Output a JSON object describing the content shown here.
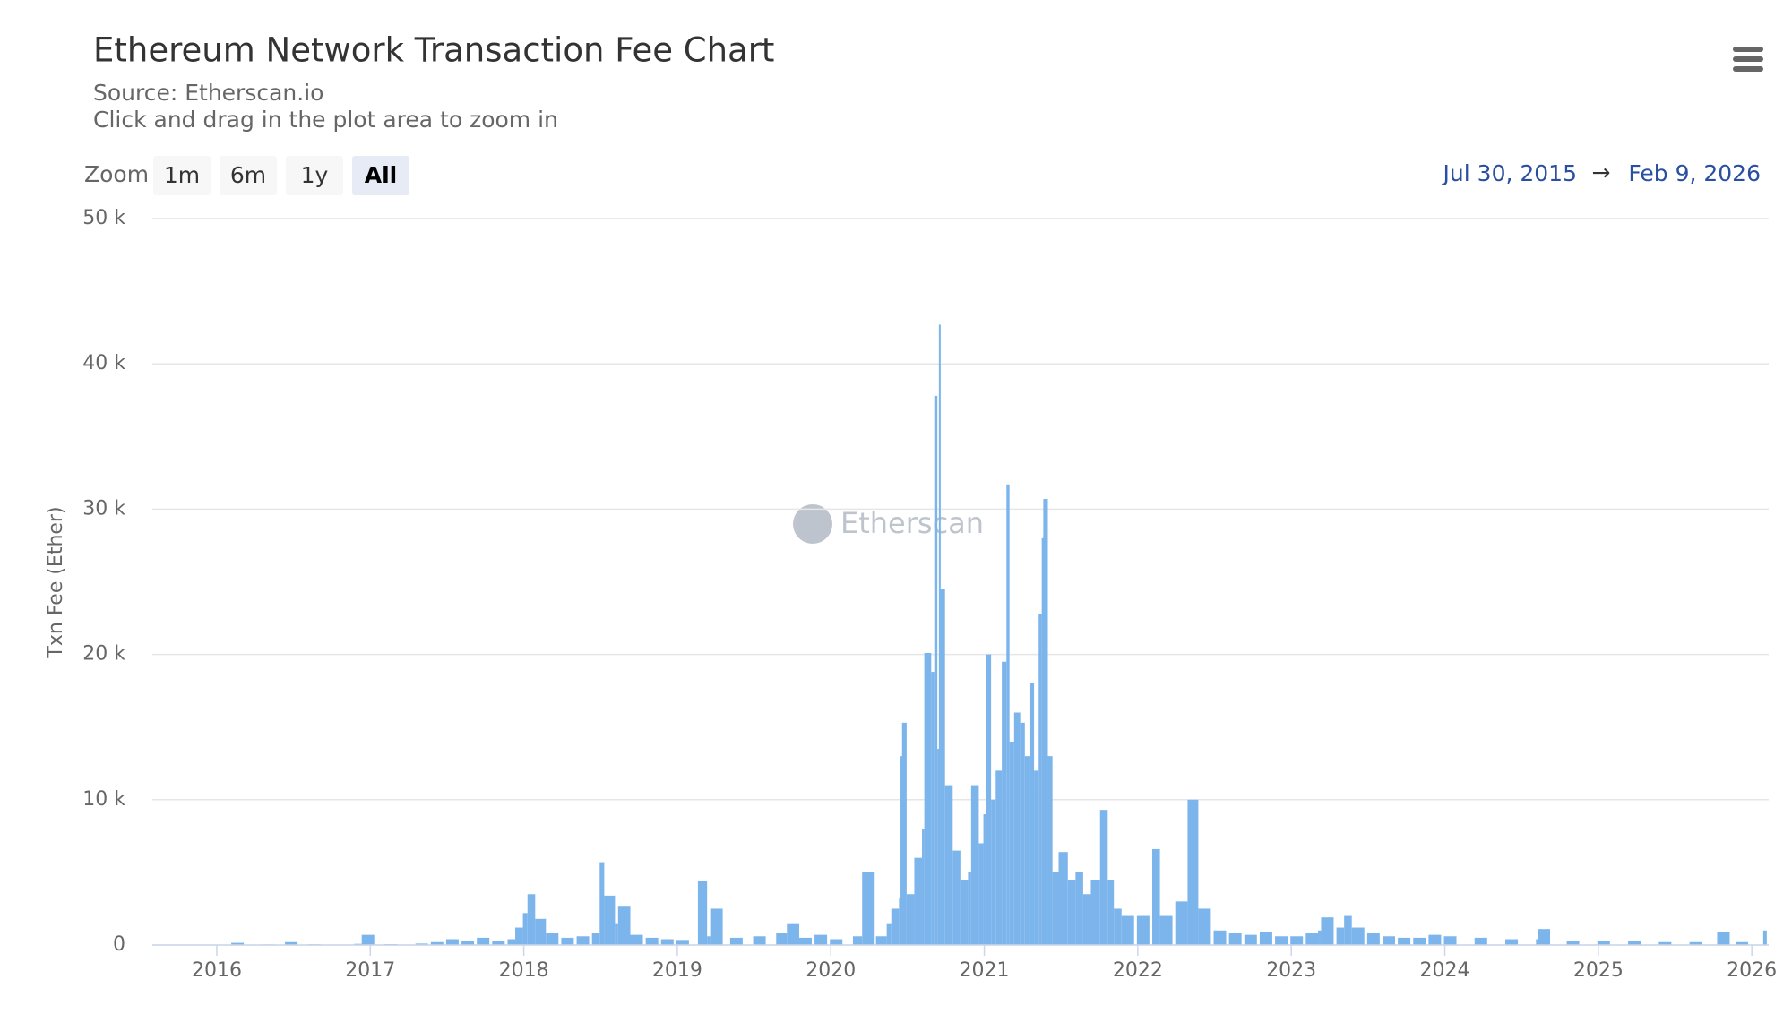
{
  "header": {
    "title": "Ethereum Network Transaction Fee Chart",
    "subtitle": "Source: Etherscan.io",
    "hint": "Click and drag in the plot area to zoom in"
  },
  "zoom": {
    "label": "Zoom",
    "buttons": [
      "1m",
      "6m",
      "1y",
      "All"
    ],
    "selected_index": 3
  },
  "range": {
    "from": "Jul 30, 2015",
    "arrow": "→",
    "to": "Feb 9, 2026"
  },
  "watermark": "Etherscan",
  "chart_data": {
    "type": "bar",
    "y_label": "Txn Fee (Ether)",
    "color": "#7cb5ec",
    "grid": true,
    "xlim": [
      2015.58,
      2026.11
    ],
    "xticks": [
      2016,
      2017,
      2018,
      2019,
      2020,
      2021,
      2022,
      2023,
      2024,
      2025,
      2026
    ],
    "ylim": [
      0,
      50000
    ],
    "yticks": [
      {
        "value": 0,
        "label": "0"
      },
      {
        "value": 10000,
        "label": "10 k"
      },
      {
        "value": 20000,
        "label": "20 k"
      },
      {
        "value": 30000,
        "label": "30 k"
      },
      {
        "value": 40000,
        "label": "40 k"
      },
      {
        "value": 50000,
        "label": "50 k"
      }
    ],
    "x": [
      2015.6,
      2015.8,
      2016.0,
      2016.1,
      2016.3,
      2016.45,
      2016.6,
      2016.9,
      2016.95,
      2017.1,
      2017.3,
      2017.4,
      2017.5,
      2017.6,
      2017.7,
      2017.8,
      2017.9,
      2017.95,
      2018.0,
      2018.03,
      2018.08,
      2018.15,
      2018.25,
      2018.35,
      2018.45,
      2018.5,
      2018.53,
      2018.6,
      2018.62,
      2018.7,
      2018.8,
      2018.9,
      2019.0,
      2019.14,
      2019.2,
      2019.22,
      2019.35,
      2019.5,
      2019.65,
      2019.72,
      2019.8,
      2019.9,
      2020.0,
      2020.15,
      2020.21,
      2020.3,
      2020.37,
      2020.4,
      2020.45,
      2020.46,
      2020.47,
      2020.5,
      2020.55,
      2020.6,
      2020.615,
      2020.66,
      2020.68,
      2020.7,
      2020.71,
      2020.72,
      2020.75,
      2020.8,
      2020.85,
      2020.9,
      2020.92,
      2020.97,
      2021.0,
      2021.02,
      2021.05,
      2021.08,
      2021.12,
      2021.15,
      2021.17,
      2021.2,
      2021.24,
      2021.27,
      2021.3,
      2021.33,
      2021.36,
      2021.38,
      2021.39,
      2021.42,
      2021.45,
      2021.49,
      2021.55,
      2021.6,
      2021.65,
      2021.7,
      2021.76,
      2021.81,
      2021.85,
      2021.9,
      2022.0,
      2022.1,
      2022.15,
      2022.25,
      2022.33,
      2022.4,
      2022.5,
      2022.6,
      2022.7,
      2022.8,
      2022.9,
      2023.0,
      2023.1,
      2023.18,
      2023.2,
      2023.3,
      2023.35,
      2023.4,
      2023.5,
      2023.6,
      2023.7,
      2023.8,
      2023.9,
      2024.0,
      2024.2,
      2024.4,
      2024.6,
      2024.61,
      2024.8,
      2025.0,
      2025.2,
      2025.4,
      2025.6,
      2025.78,
      2025.9,
      2026.08
    ],
    "values": [
      10,
      15,
      30,
      150,
      40,
      200,
      50,
      80,
      700,
      60,
      100,
      200,
      400,
      300,
      500,
      300,
      400,
      1200,
      2200,
      3500,
      1800,
      800,
      500,
      600,
      800,
      5700,
      3400,
      1500,
      2700,
      700,
      500,
      400,
      350,
      4400,
      600,
      2500,
      500,
      600,
      800,
      1500,
      500,
      700,
      400,
      600,
      5000,
      600,
      1500,
      2500,
      3200,
      13000,
      15300,
      3500,
      6000,
      8000,
      20100,
      18800,
      37800,
      13500,
      42700,
      24500,
      11000,
      6500,
      4500,
      5000,
      11000,
      7000,
      9000,
      20000,
      10000,
      12000,
      19500,
      31700,
      14000,
      16000,
      15300,
      13000,
      18000,
      12000,
      22800,
      28000,
      30700,
      13000,
      5000,
      6400,
      4500,
      5000,
      3500,
      4500,
      9300,
      4500,
      2500,
      2000,
      2000,
      6600,
      2000,
      3000,
      10000,
      2500,
      1000,
      800,
      700,
      900,
      600,
      600,
      800,
      1000,
      1900,
      1200,
      2000,
      1200,
      800,
      600,
      500,
      500,
      700,
      600,
      500,
      400,
      400,
      1100,
      300,
      300,
      250,
      200,
      200,
      900,
      200,
      1000
    ]
  }
}
